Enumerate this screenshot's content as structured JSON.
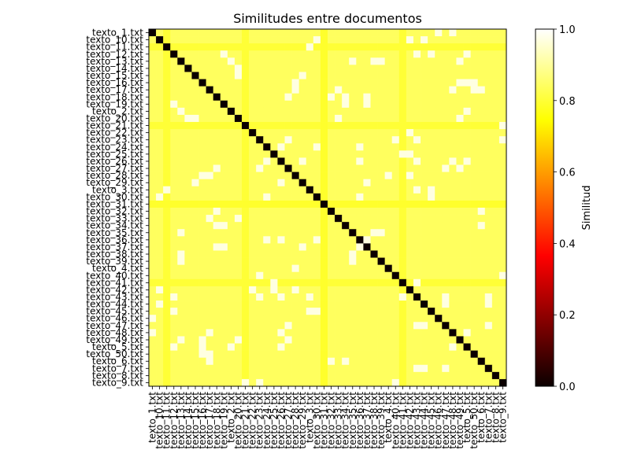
{
  "chart_data": {
    "type": "heatmap",
    "title": "Similitudes entre documentos",
    "colorbar_label": "Similitud",
    "colormap": "hot",
    "vmin": 0.0,
    "vmax": 1.0,
    "colorbar_ticks": [
      "0.0",
      "0.2",
      "0.4",
      "0.6",
      "0.8",
      "1.0"
    ],
    "labels": [
      "texto_1.txt",
      "texto_10.txt",
      "texto_11.txt",
      "texto_12.txt",
      "texto_13.txt",
      "texto_14.txt",
      "texto_15.txt",
      "texto_16.txt",
      "texto_17.txt",
      "texto_18.txt",
      "texto_19.txt",
      "texto_2.txt",
      "texto_20.txt",
      "texto_21.txt",
      "texto_22.txt",
      "texto_23.txt",
      "texto_24.txt",
      "texto_25.txt",
      "texto_26.txt",
      "texto_27.txt",
      "texto_28.txt",
      "texto_29.txt",
      "texto_3.txt",
      "texto_30.txt",
      "texto_31.txt",
      "texto_32.txt",
      "texto_33.txt",
      "texto_34.txt",
      "texto_35.txt",
      "texto_36.txt",
      "texto_37.txt",
      "texto_38.txt",
      "texto_39.txt",
      "texto_4.txt",
      "texto_40.txt",
      "texto_41.txt",
      "texto_42.txt",
      "texto_43.txt",
      "texto_44.txt",
      "texto_45.txt",
      "texto_46.txt",
      "texto_47.txt",
      "texto_48.txt",
      "texto_49.txt",
      "texto_5.txt",
      "texto_50.txt",
      "texto_6.txt",
      "texto_7.txt",
      "texto_8.txt",
      "texto_9.txt"
    ],
    "values": {
      "diagonal": 0.0,
      "default_off_diagonal": 0.84,
      "darker_rows": [
        {
          "label": "texto_11.txt",
          "value": 0.8
        },
        {
          "label": "texto_21.txt",
          "value": 0.8
        },
        {
          "label": "texto_31.txt",
          "value": 0.79
        },
        {
          "label": "texto_41.txt",
          "value": 0.8
        }
      ],
      "bright_pairs": [
        [
          "texto_1.txt",
          "texto_48.txt"
        ],
        [
          "texto_10.txt",
          "texto_30.txt"
        ],
        [
          "texto_10.txt",
          "texto_42.txt"
        ],
        [
          "texto_10.txt",
          "texto_44.txt"
        ],
        [
          "texto_12.txt",
          "texto_19.txt"
        ],
        [
          "texto_12.txt",
          "texto_5.txt"
        ],
        [
          "texto_13.txt",
          "texto_35.txt"
        ],
        [
          "texto_13.txt",
          "texto_38.txt"
        ],
        [
          "texto_13.txt",
          "texto_39.txt"
        ],
        [
          "texto_14.txt",
          "texto_20.txt"
        ],
        [
          "texto_15.txt",
          "texto_29.txt"
        ],
        [
          "texto_16.txt",
          "texto_28.txt"
        ],
        [
          "texto_16.txt",
          "texto_49.txt"
        ],
        [
          "texto_16.txt",
          "texto_50.txt"
        ],
        [
          "texto_17.txt",
          "texto_33.txt"
        ],
        [
          "texto_17.txt",
          "texto_6.txt"
        ],
        [
          "texto_18.txt",
          "texto_37.txt"
        ],
        [
          "texto_19.txt",
          "texto_34.txt"
        ],
        [
          "texto_2.txt",
          "texto_13.txt"
        ],
        [
          "texto_2.txt",
          "texto_5.txt"
        ],
        [
          "texto_20.txt",
          "texto_15.txt"
        ],
        [
          "texto_21.txt",
          "texto_9.txt"
        ],
        [
          "texto_22.txt",
          "texto_42.txt"
        ],
        [
          "texto_23.txt",
          "texto_43.txt"
        ],
        [
          "texto_23.txt",
          "texto_27.txt"
        ],
        [
          "texto_24.txt",
          "texto_30.txt"
        ],
        [
          "texto_24.txt",
          "texto_36.txt"
        ],
        [
          "texto_25.txt",
          "texto_41.txt"
        ],
        [
          "texto_26.txt",
          "texto_24.txt"
        ],
        [
          "texto_26.txt",
          "texto_43.txt"
        ],
        [
          "texto_27.txt",
          "texto_18.txt"
        ],
        [
          "texto_27.txt",
          "texto_47.txt"
        ],
        [
          "texto_27.txt",
          "texto_49.txt"
        ],
        [
          "texto_28.txt",
          "texto_17.txt"
        ],
        [
          "texto_29.txt",
          "texto_26.txt"
        ],
        [
          "texto_29.txt",
          "texto_37.txt"
        ],
        [
          "texto_3.txt",
          "texto_11.txt"
        ],
        [
          "texto_3.txt",
          "texto_43.txt"
        ],
        [
          "texto_3.txt",
          "texto_45.txt"
        ],
        [
          "texto_32.txt",
          "texto_18.txt"
        ],
        [
          "texto_32.txt",
          "texto_6.txt"
        ],
        [
          "texto_33.txt",
          "texto_20.txt"
        ],
        [
          "texto_34.txt",
          "texto_18.txt"
        ],
        [
          "texto_34.txt",
          "texto_6.txt"
        ],
        [
          "texto_35.txt",
          "texto_13.txt"
        ],
        [
          "texto_35.txt",
          "texto_38.txt"
        ],
        [
          "texto_35.txt",
          "texto_39.txt"
        ],
        [
          "texto_36.txt",
          "texto_26.txt"
        ],
        [
          "texto_36.txt",
          "texto_30.txt"
        ],
        [
          "texto_37.txt",
          "texto_19.txt"
        ],
        [
          "texto_37.txt",
          "texto_36.txt"
        ],
        [
          "texto_38.txt",
          "texto_13.txt"
        ],
        [
          "texto_38.txt",
          "texto_35.txt"
        ],
        [
          "texto_39.txt",
          "texto_13.txt"
        ],
        [
          "texto_39.txt",
          "texto_35.txt"
        ],
        [
          "texto_4.txt",
          "texto_28.txt"
        ],
        [
          "texto_40.txt",
          "texto_23.txt"
        ],
        [
          "texto_40.txt",
          "texto_9.txt"
        ],
        [
          "texto_42.txt",
          "texto_25.txt"
        ],
        [
          "texto_42.txt",
          "texto_28.txt"
        ],
        [
          "texto_43.txt",
          "texto_12.txt"
        ],
        [
          "texto_43.txt",
          "texto_41.txt"
        ],
        [
          "texto_44.txt",
          "texto_47.txt"
        ],
        [
          "texto_44.txt",
          "texto_7.txt"
        ],
        [
          "texto_45.txt",
          "texto_12.txt"
        ],
        [
          "texto_45.txt",
          "texto_30.txt"
        ],
        [
          "texto_46.txt",
          "texto_1.txt"
        ],
        [
          "texto_47.txt",
          "texto_43.txt"
        ],
        [
          "texto_48.txt",
          "texto_17.txt"
        ],
        [
          "texto_48.txt",
          "texto_26.txt"
        ],
        [
          "texto_48.txt",
          "texto_5.txt"
        ],
        [
          "texto_49.txt",
          "texto_13.txt"
        ],
        [
          "texto_49.txt",
          "texto_20.txt"
        ],
        [
          "texto_5.txt",
          "texto_16.txt"
        ],
        [
          "texto_5.txt",
          "texto_26.txt"
        ],
        [
          "texto_50.txt",
          "texto_17.txt"
        ],
        [
          "texto_7.txt",
          "texto_43.txt"
        ],
        [
          "texto_7.txt",
          "texto_47.txt"
        ],
        [
          "texto_9.txt",
          "texto_23.txt"
        ]
      ],
      "bright_value": 0.97
    }
  }
}
